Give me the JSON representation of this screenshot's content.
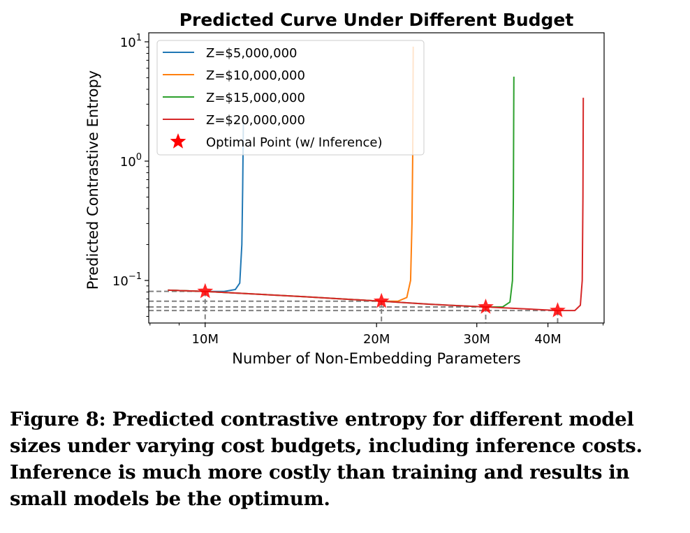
{
  "chart_data": {
    "type": "line",
    "title": "Predicted Curve Under Different Budget",
    "xlabel": "Number of Non-Embedding Parameters",
    "ylabel": "Predicted Contrastive Entropy",
    "xscale": "log",
    "yscale": "log",
    "xlim": [
      7960000,
      50200000
    ],
    "ylim": [
      0.044,
      11.9
    ],
    "x_ticks": [
      {
        "value": 10000000,
        "label": "10M"
      },
      {
        "value": 20000000,
        "label": "20M"
      },
      {
        "value": 30000000,
        "label": "30M"
      },
      {
        "value": 40000000,
        "label": "40M"
      }
    ],
    "y_ticks": [
      {
        "value": 0.1,
        "base": "10",
        "exp": "−1"
      },
      {
        "value": 1,
        "base": "10",
        "exp": "0"
      },
      {
        "value": 10,
        "base": "10",
        "exp": "1"
      }
    ],
    "legend_position": "top-left",
    "series": [
      {
        "name": "Z=$5,000,000",
        "color": "#1f77b4",
        "x": [
          8600000.0,
          10000000.0,
          10800000.0,
          11300000.0,
          11500000.0,
          11600000.0,
          11640000.0,
          11670000.0
        ],
        "y": [
          0.083,
          0.081,
          0.081,
          0.084,
          0.095,
          0.2,
          0.6,
          2.2
        ]
      },
      {
        "name": "Z=$10,000,000",
        "color": "#ff7f0e",
        "x": [
          8600000.0,
          10000000.0,
          15000000.0,
          20400000.0,
          21800000.0,
          22600000.0,
          22950000.0,
          23080000.0,
          23150000.0,
          23200000.0
        ],
        "y": [
          0.083,
          0.081,
          0.073,
          0.067,
          0.067,
          0.072,
          0.1,
          0.3,
          1.2,
          9.1
        ]
      },
      {
        "name": "Z=$15,000,000",
        "color": "#2ca02c",
        "x": [
          8600000.0,
          10000000.0,
          15000000.0,
          20400000.0,
          25000000.0,
          31100000.0,
          33300000.0,
          34300000.0,
          34650000.0,
          34780000.0,
          34850000.0
        ],
        "y": [
          0.083,
          0.081,
          0.073,
          0.067,
          0.063,
          0.06,
          0.06,
          0.066,
          0.1,
          0.5,
          5.1
        ]
      },
      {
        "name": "Z=$20,000,000",
        "color": "#d62728",
        "x": [
          8600000.0,
          10000000.0,
          15000000.0,
          20400000.0,
          25000000.0,
          31100000.0,
          36000000.0,
          41600000.0,
          44600000.0,
          45600000.0,
          45950000.0,
          46080000.0,
          46150000.0
        ],
        "y": [
          0.083,
          0.081,
          0.073,
          0.067,
          0.063,
          0.06,
          0.058,
          0.056,
          0.056,
          0.062,
          0.1,
          0.5,
          3.4
        ]
      }
    ],
    "optimal_points": {
      "name": "Optimal Point (w/ Inference)",
      "color": "#ff0000",
      "x": [
        10000000.0,
        20400000.0,
        31100000.0,
        41600000.0
      ],
      "y": [
        0.081,
        0.067,
        0.06,
        0.056
      ]
    }
  },
  "caption": "Figure 8: Predicted contrastive entropy for different model sizes under varying cost budgets, including inference costs. Inference is much more costly than training and results in small models be the optimum."
}
